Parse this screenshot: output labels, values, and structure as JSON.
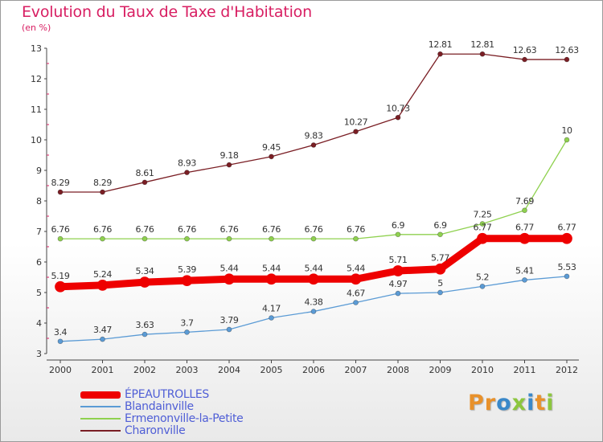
{
  "header": {
    "title": "Evolution du Taux de Taxe d'Habitation",
    "subtitle": "(en %)"
  },
  "logo": {
    "letters": [
      "P",
      "r",
      "o",
      "x",
      "i",
      "t",
      "i"
    ],
    "colors": [
      "#e8912b",
      "#e8912b",
      "#3a88c9",
      "#8cc63e",
      "#3a88c9",
      "#e8912b",
      "#8cc63e"
    ]
  },
  "chart_data": {
    "type": "line",
    "title": "Evolution du Taux de Taxe d'Habitation",
    "subtitle": "(en %)",
    "xlabel": "",
    "ylabel": "",
    "x": [
      "2000",
      "2001",
      "2002",
      "2003",
      "2004",
      "2005",
      "2006",
      "2007",
      "2008",
      "2009",
      "2010",
      "2011",
      "2012"
    ],
    "ylim": [
      3,
      13
    ],
    "yticks": [
      3,
      4,
      5,
      6,
      7,
      8,
      9,
      10,
      11,
      12,
      13
    ],
    "grid": false,
    "legend_position": "bottom-left",
    "series": [
      {
        "name": "ÉPEAUTROLLES",
        "color": "#ee0000",
        "values": [
          5.19,
          5.24,
          5.34,
          5.39,
          5.44,
          5.44,
          5.44,
          5.44,
          5.71,
          5.77,
          6.77,
          6.77,
          6.77
        ],
        "labels": [
          "5.19",
          "5.24",
          "5.34",
          "5.39",
          "5.44",
          "5.44",
          "5.44",
          "5.44",
          "5.71",
          "5.77",
          "6.77",
          "6.77",
          "6.77"
        ],
        "emphasis": true
      },
      {
        "name": "Blandainville",
        "color": "#5b9bd5",
        "values": [
          3.4,
          3.47,
          3.63,
          3.7,
          3.79,
          4.17,
          4.38,
          4.67,
          4.97,
          5,
          5.2,
          5.41,
          5.53
        ],
        "labels": [
          "3.4",
          "3.47",
          "3.63",
          "3.7",
          "3.79",
          "4.17",
          "4.38",
          "4.67",
          "4.97",
          "5",
          "5.2",
          "5.41",
          "5.53"
        ]
      },
      {
        "name": "Ermenonville-la-Petite",
        "color": "#8fd14f",
        "values": [
          6.76,
          6.76,
          6.76,
          6.76,
          6.76,
          6.76,
          6.76,
          6.76,
          6.9,
          6.9,
          7.25,
          7.69,
          10
        ],
        "labels": [
          "6.76",
          "6.76",
          "6.76",
          "6.76",
          "6.76",
          "6.76",
          "6.76",
          "6.76",
          "6.9",
          "6.9",
          "7.25",
          "7.69",
          "10"
        ]
      },
      {
        "name": "Charonville",
        "color": "#7a1e24",
        "values": [
          8.29,
          8.29,
          8.61,
          8.93,
          9.18,
          9.45,
          9.83,
          10.27,
          10.73,
          12.81,
          12.81,
          12.63,
          12.63
        ],
        "labels": [
          "8.29",
          "8.29",
          "8.61",
          "8.93",
          "9.18",
          "9.45",
          "9.83",
          "10.27",
          "10.73",
          "12.81",
          "12.81",
          "12.63",
          "12.63"
        ]
      }
    ]
  }
}
